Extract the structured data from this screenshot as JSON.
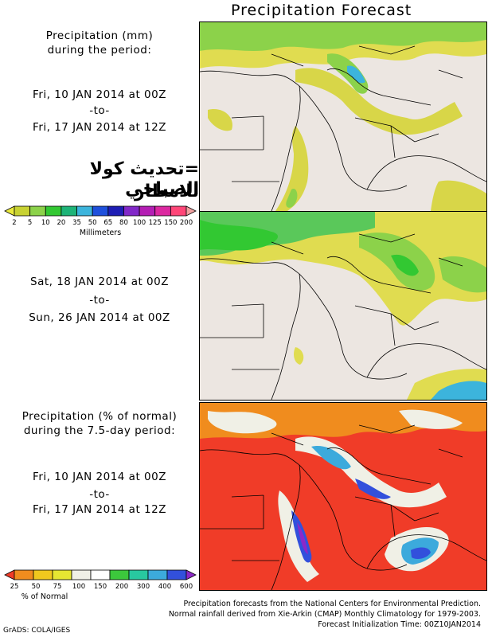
{
  "title": "Precipitation Forecast",
  "panel1": {
    "heading_line1": "Precipitation (mm)",
    "heading_line2": "during the period:",
    "start": "Fri, 10 JAN 2014 at 00Z",
    "to": "-to-",
    "end": "Fri, 17 JAN 2014 at 12Z"
  },
  "overlay_text": {
    "line1": "=تحديث كولا الصباحي",
    "line2": "للامطار"
  },
  "legend_mm": {
    "ticks": [
      "2",
      "5",
      "10",
      "20",
      "35",
      "50",
      "65",
      "80",
      "100",
      "125",
      "150",
      "200"
    ],
    "colors": [
      "#eaea3c",
      "#c8d232",
      "#8cd24a",
      "#32c832",
      "#1eb478",
      "#3cb4dc",
      "#1e50dc",
      "#1e1eb4",
      "#8228c8",
      "#b41eb4",
      "#dc28a0",
      "#ff4678",
      "#f0a0a0"
    ],
    "label": "Millimeters"
  },
  "panel2": {
    "start": "Sat, 18 JAN 2014 at 00Z",
    "to": "-to-",
    "end": "Sun, 26 JAN 2014 at 00Z"
  },
  "panel3": {
    "heading_line1": "Precipitation (% of normal)",
    "heading_line2": "during the 7.5-day period:",
    "start": "Fri, 10 JAN 2014 at 00Z",
    "to": "-to-",
    "end": "Fri, 17 JAN 2014 at 12Z"
  },
  "legend_pct": {
    "ticks": [
      "25",
      "50",
      "75",
      "100",
      "150",
      "200",
      "300",
      "400",
      "600"
    ],
    "colors": [
      "#f03c28",
      "#f08c1e",
      "#f0c81e",
      "#e6e632",
      "#f0f0e6",
      "#ffffff",
      "#3cc83c",
      "#28c8a0",
      "#3caadc",
      "#3250dc",
      "#8c28c8"
    ],
    "label": "% of Normal"
  },
  "footer": {
    "line1": "Precipitation forecasts from the National Centers for Environmental Prediction.",
    "line2": "Normal rainfall derived from Xie-Arkin (CMAP) Monthly Climatology for 1979-2003.",
    "line3": "Forecast Initialization Time: 00Z10JAN2014"
  },
  "credit": "GrADS: COLA/IGES"
}
